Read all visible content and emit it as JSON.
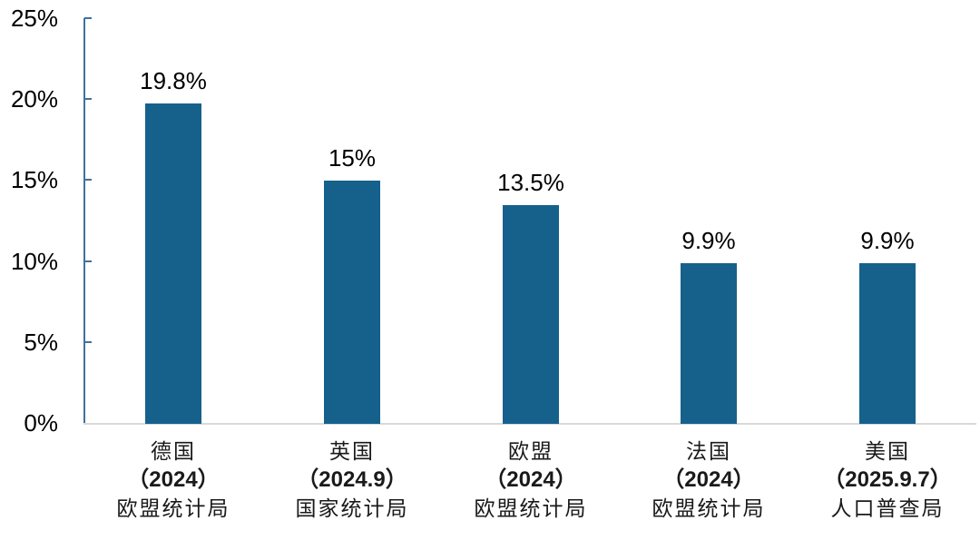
{
  "chart_data": {
    "type": "bar",
    "title": "",
    "xlabel": "",
    "ylabel": "",
    "unit": "%",
    "grid": false,
    "legend_position": "none",
    "ylim": [
      0,
      25
    ],
    "ytick_values": [
      0,
      5,
      10,
      15,
      20,
      25
    ],
    "ytick_labels": [
      "0%",
      "5%",
      "10%",
      "15%",
      "20%",
      "25%"
    ],
    "values": [
      19.8,
      15,
      13.5,
      9.9,
      9.9
    ],
    "value_labels": [
      "19.8%",
      "15%",
      "13.5%",
      "9.9%",
      "9.9%"
    ],
    "categories": [
      {
        "country": "德国",
        "date": "（2024）",
        "source": "欧盟统计局"
      },
      {
        "country": "英国",
        "date": "（2024.9）",
        "source": "国家统计局"
      },
      {
        "country": "欧盟",
        "date": "（2024）",
        "source": "欧盟统计局"
      },
      {
        "country": "法国",
        "date": "（2024）",
        "source": "欧盟统计局"
      },
      {
        "country": "美国",
        "date": "（2025.9.7）",
        "source": "人口普查局"
      }
    ]
  },
  "colors": {
    "bar_fill": "#15618C",
    "axis_line": "#41719C",
    "tick_mark": "#41719C",
    "baseline": "#D9D9D9",
    "value_text": "#000000",
    "category_text": "#1A1A1A",
    "background": "#FFFFFF"
  }
}
